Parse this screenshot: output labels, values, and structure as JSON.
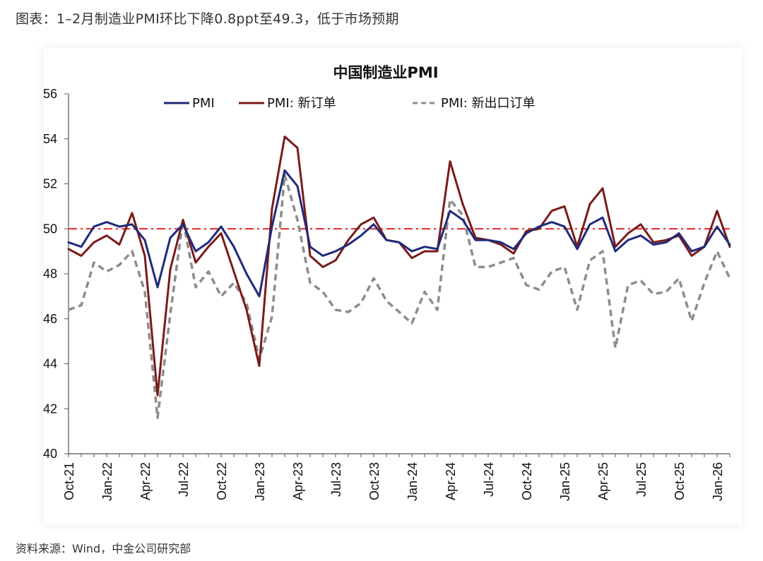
{
  "figure_title": "图表：1–2月制造业PMI环比下降0.8ppt至49.3，低于市场预期",
  "source_note": "资料来源：Wind，中金公司研究部",
  "colors": {
    "pmi": "#1f2a7a",
    "new_orders": "#7a1a1a",
    "new_export_orders": "#8c8c8c",
    "reference_line": "#e03a3a",
    "axis": "#555555"
  },
  "chart_data": {
    "type": "line",
    "title": "中国制造业PMI",
    "xlabel": "",
    "ylabel": "",
    "ylim": [
      40,
      56
    ],
    "yticks": [
      "40",
      "42",
      "44",
      "46",
      "48",
      "50",
      "52",
      "54",
      "56"
    ],
    "x_tick_labels": [
      "Oct-21",
      "Jan-22",
      "Apr-22",
      "Jul-22",
      "Oct-22",
      "Jan-23",
      "Apr-23",
      "Jul-23",
      "Oct-23",
      "Jan-24",
      "Apr-24",
      "Jul-24",
      "Oct-24",
      "Jan-25",
      "Apr-25",
      "Jul-25",
      "Oct-25",
      "Jan-26"
    ],
    "reference_line": {
      "value": 50,
      "style": "dash-dot"
    },
    "legend_position": "top",
    "series": [
      {
        "name": "PMI",
        "style": "solid",
        "values": [
          49.4,
          49.2,
          50.1,
          50.3,
          50.1,
          50.2,
          49.5,
          47.4,
          49.6,
          50.2,
          49.0,
          49.4,
          50.1,
          49.2,
          48.0,
          47.0,
          50.1,
          52.6,
          51.9,
          49.2,
          48.8,
          49.0,
          49.3,
          49.7,
          50.2,
          49.5,
          49.4,
          49.0,
          49.2,
          49.1,
          50.8,
          50.4,
          49.5,
          49.5,
          49.4,
          49.1,
          49.8,
          50.1,
          50.3,
          50.1,
          49.1,
          50.2,
          50.5,
          49.0,
          49.5,
          49.7,
          49.3,
          49.4,
          49.8,
          49.0,
          49.2,
          50.1,
          49.3
        ]
      },
      {
        "name": "PMI: 新订单",
        "style": "solid",
        "values": [
          49.1,
          48.8,
          49.4,
          49.7,
          49.3,
          50.7,
          48.8,
          42.6,
          48.2,
          50.4,
          48.5,
          49.2,
          49.8,
          48.1,
          46.4,
          43.9,
          50.9,
          54.1,
          53.6,
          48.8,
          48.3,
          48.6,
          49.5,
          50.2,
          50.5,
          49.5,
          49.4,
          48.7,
          49.0,
          49.0,
          53.0,
          51.1,
          49.6,
          49.5,
          49.3,
          48.9,
          49.9,
          50.0,
          50.8,
          51.0,
          49.2,
          51.1,
          51.8,
          49.2,
          49.8,
          50.2,
          49.4,
          49.5,
          49.7,
          48.8,
          49.2,
          50.8,
          49.2
        ]
      },
      {
        "name": "PMI: 新出口订单",
        "style": "dashed",
        "values": [
          46.4,
          46.6,
          48.5,
          48.1,
          48.4,
          49.0,
          47.2,
          41.6,
          46.2,
          50.4,
          47.4,
          48.1,
          47.0,
          47.6,
          46.7,
          44.2,
          46.1,
          52.4,
          50.4,
          47.6,
          47.2,
          46.4,
          46.3,
          46.7,
          47.8,
          46.8,
          46.3,
          45.8,
          47.2,
          46.4,
          51.3,
          50.6,
          48.3,
          48.3,
          48.5,
          48.7,
          47.5,
          47.3,
          48.1,
          48.3,
          46.4,
          48.6,
          49.0,
          44.7,
          47.5,
          47.7,
          47.1,
          47.2,
          47.8,
          45.9,
          47.6,
          49.0,
          47.8
        ]
      }
    ]
  }
}
